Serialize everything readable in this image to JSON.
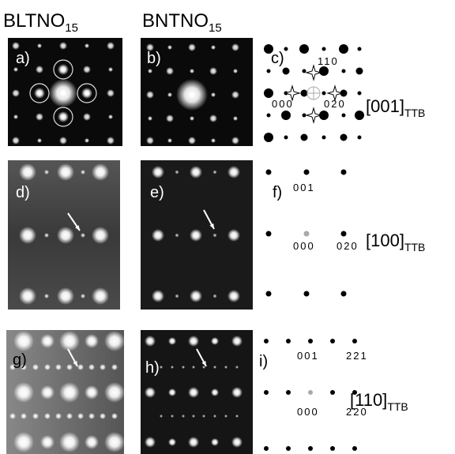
{
  "columns": [
    {
      "name": "BLTNO",
      "sub": "15"
    },
    {
      "name": "BNTNO",
      "sub": "15"
    }
  ],
  "panels": [
    "a)",
    "b)",
    "c)",
    "d)",
    "e)",
    "f)",
    "g)",
    "h)",
    "i)"
  ],
  "rows": [
    {
      "zone": "[001]",
      "zone_sub": "TTB",
      "indices": [
        "110",
        "000",
        "020"
      ]
    },
    {
      "zone": "[100]",
      "zone_sub": "TTB",
      "indices": [
        "001",
        "000",
        "020"
      ]
    },
    {
      "zone": "[110]",
      "zone_sub": "TTB",
      "indices": [
        "001",
        "221",
        "000",
        "220"
      ]
    }
  ]
}
